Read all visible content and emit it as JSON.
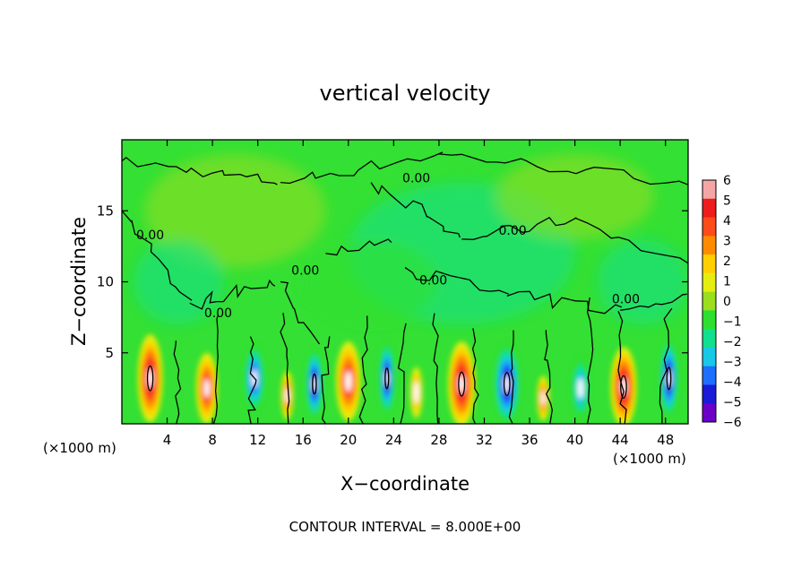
{
  "chart_data": {
    "type": "heatmap",
    "title": "vertical velocity",
    "xlabel": "X−coordinate",
    "ylabel": "Z−coordinate",
    "x_unit_left": "(×1000 m)",
    "x_unit_right": "(×1000 m)",
    "xlim": [
      0,
      50
    ],
    "ylim": [
      0,
      20
    ],
    "x_ticks": [
      4,
      8,
      12,
      16,
      20,
      24,
      28,
      32,
      36,
      40,
      44,
      48
    ],
    "y_ticks": [
      5,
      10,
      15
    ],
    "colorbar": {
      "labels": [
        "6",
        "5",
        "4",
        "3",
        "2",
        "1",
        "0",
        "−1",
        "−2",
        "−3",
        "−4",
        "−5",
        "−6"
      ],
      "colors": [
        "#f4a6a6",
        "#ee1c1c",
        "#ff4a1a",
        "#ff8c00",
        "#ffcf00",
        "#e6ee10",
        "#9ade1e",
        "#2ee02e",
        "#10e08e",
        "#18c8e8",
        "#1e6eff",
        "#1a1ad8",
        "#6a00c8"
      ]
    },
    "cells": [
      {
        "x": 2.5,
        "z": 3.2,
        "w": 2.2,
        "h": 6.2,
        "v": 5
      },
      {
        "x": 7.5,
        "z": 2.5,
        "w": 1.9,
        "h": 5.0,
        "v": 4
      },
      {
        "x": 11.7,
        "z": 3.2,
        "w": 1.8,
        "h": 4.8,
        "v": -4
      },
      {
        "x": 14.6,
        "z": 2.0,
        "w": 1.1,
        "h": 3.4,
        "v": 3
      },
      {
        "x": 17.0,
        "z": 2.8,
        "w": 1.5,
        "h": 5.0,
        "v": -5
      },
      {
        "x": 20.0,
        "z": 3.0,
        "w": 2.2,
        "h": 5.6,
        "v": 4
      },
      {
        "x": 23.4,
        "z": 3.2,
        "w": 1.4,
        "h": 5.2,
        "v": -5
      },
      {
        "x": 26.0,
        "z": 2.2,
        "w": 1.1,
        "h": 3.6,
        "v": 2
      },
      {
        "x": 30.0,
        "z": 2.8,
        "w": 2.4,
        "h": 6.0,
        "v": 5
      },
      {
        "x": 34.0,
        "z": 2.8,
        "w": 2.3,
        "h": 5.8,
        "v": -5
      },
      {
        "x": 37.2,
        "z": 1.8,
        "w": 1.1,
        "h": 3.2,
        "v": 3
      },
      {
        "x": 40.5,
        "z": 2.5,
        "w": 1.6,
        "h": 4.4,
        "v": -3
      },
      {
        "x": 44.3,
        "z": 2.6,
        "w": 2.3,
        "h": 5.6,
        "v": 5
      },
      {
        "x": 48.3,
        "z": 3.2,
        "w": 1.6,
        "h": 5.6,
        "v": -5
      }
    ],
    "contour_labels": [
      {
        "text": "0.00",
        "x": 26.0,
        "z": 17.0
      },
      {
        "text": "0.00",
        "x": 34.5,
        "z": 13.3
      },
      {
        "text": "0.00",
        "x": 2.5,
        "z": 13.0
      },
      {
        "text": "0.00",
        "x": 16.2,
        "z": 10.5
      },
      {
        "text": "0.00",
        "x": 27.5,
        "z": 9.8
      },
      {
        "text": "0.00",
        "x": 8.5,
        "z": 7.5
      },
      {
        "text": "0.00",
        "x": 44.5,
        "z": 8.5
      }
    ]
  },
  "footer": "CONTOUR INTERVAL = 8.000E+00"
}
